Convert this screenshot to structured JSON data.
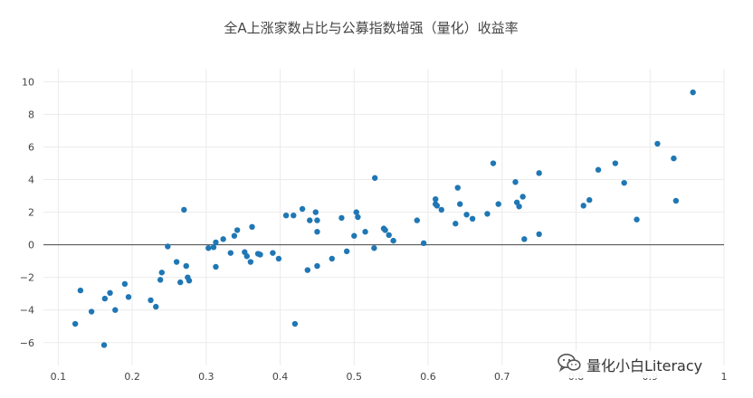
{
  "chart_data": {
    "type": "scatter",
    "title": "全A上涨家数占比与公募指数增强（量化）收益率",
    "xlabel": "",
    "ylabel": "",
    "xlim": [
      0.08,
      1.0
    ],
    "ylim": [
      -7.4,
      10.8
    ],
    "x_ticks": [
      0.1,
      0.2,
      0.3,
      0.4,
      0.5,
      0.6,
      0.7,
      0.8,
      0.9,
      1
    ],
    "x_tick_labels": [
      "0.1",
      "0.2",
      "0.3",
      "0.4",
      "0.5",
      "0.6",
      "0.7",
      "0.8",
      "0.9",
      "1"
    ],
    "y_ticks": [
      -6,
      -4,
      -2,
      0,
      2,
      4,
      6,
      8,
      10
    ],
    "y_tick_labels": [
      "−6",
      "−4",
      "−2",
      "0",
      "2",
      "4",
      "6",
      "8",
      "10"
    ],
    "grid": true,
    "zero_line": true,
    "marker_color": "#1f77b4",
    "points": [
      [
        0.123,
        -4.85
      ],
      [
        0.13,
        -2.8
      ],
      [
        0.145,
        -4.1
      ],
      [
        0.162,
        -6.15
      ],
      [
        0.163,
        -3.3
      ],
      [
        0.17,
        -2.95
      ],
      [
        0.177,
        -4.0
      ],
      [
        0.19,
        -2.4
      ],
      [
        0.195,
        -3.2
      ],
      [
        0.225,
        -3.4
      ],
      [
        0.232,
        -3.8
      ],
      [
        0.238,
        -2.15
      ],
      [
        0.24,
        -1.7
      ],
      [
        0.248,
        -0.1
      ],
      [
        0.26,
        -1.05
      ],
      [
        0.265,
        -2.3
      ],
      [
        0.27,
        2.15
      ],
      [
        0.273,
        -1.3
      ],
      [
        0.275,
        -2.0
      ],
      [
        0.277,
        -2.2
      ],
      [
        0.303,
        -0.2
      ],
      [
        0.31,
        -0.15
      ],
      [
        0.313,
        0.15
      ],
      [
        0.313,
        -1.35
      ],
      [
        0.323,
        0.35
      ],
      [
        0.333,
        -0.5
      ],
      [
        0.338,
        0.55
      ],
      [
        0.342,
        0.9
      ],
      [
        0.352,
        -0.45
      ],
      [
        0.355,
        -0.7
      ],
      [
        0.36,
        -1.05
      ],
      [
        0.362,
        1.1
      ],
      [
        0.37,
        -0.55
      ],
      [
        0.373,
        -0.6
      ],
      [
        0.39,
        -0.5
      ],
      [
        0.398,
        -0.85
      ],
      [
        0.408,
        1.8
      ],
      [
        0.418,
        1.8
      ],
      [
        0.42,
        -4.85
      ],
      [
        0.43,
        2.2
      ],
      [
        0.437,
        -1.55
      ],
      [
        0.44,
        1.5
      ],
      [
        0.448,
        2.0
      ],
      [
        0.45,
        1.5
      ],
      [
        0.45,
        0.8
      ],
      [
        0.45,
        -1.3
      ],
      [
        0.47,
        -0.85
      ],
      [
        0.483,
        1.65
      ],
      [
        0.49,
        -0.4
      ],
      [
        0.5,
        0.55
      ],
      [
        0.503,
        2.0
      ],
      [
        0.505,
        1.7
      ],
      [
        0.515,
        0.8
      ],
      [
        0.527,
        -0.2
      ],
      [
        0.528,
        4.1
      ],
      [
        0.54,
        1.0
      ],
      [
        0.542,
        0.9
      ],
      [
        0.547,
        0.6
      ],
      [
        0.553,
        0.25
      ],
      [
        0.585,
        1.5
      ],
      [
        0.594,
        0.1
      ],
      [
        0.61,
        2.8
      ],
      [
        0.61,
        2.5
      ],
      [
        0.612,
        2.4
      ],
      [
        0.618,
        2.15
      ],
      [
        0.637,
        1.3
      ],
      [
        0.64,
        3.5
      ],
      [
        0.643,
        2.5
      ],
      [
        0.652,
        1.85
      ],
      [
        0.66,
        1.6
      ],
      [
        0.68,
        1.9
      ],
      [
        0.688,
        5.0
      ],
      [
        0.695,
        2.5
      ],
      [
        0.718,
        3.85
      ],
      [
        0.72,
        2.6
      ],
      [
        0.723,
        2.35
      ],
      [
        0.728,
        2.95
      ],
      [
        0.73,
        0.35
      ],
      [
        0.75,
        4.4
      ],
      [
        0.75,
        0.65
      ],
      [
        0.81,
        2.4
      ],
      [
        0.818,
        2.75
      ],
      [
        0.83,
        4.6
      ],
      [
        0.853,
        5.0
      ],
      [
        0.865,
        3.8
      ],
      [
        0.882,
        1.55
      ],
      [
        0.91,
        6.2
      ],
      [
        0.932,
        5.3
      ],
      [
        0.935,
        2.7
      ],
      [
        0.958,
        9.35
      ]
    ]
  },
  "watermark": {
    "icon": "wechat-icon",
    "text": "量化小白Literacy"
  }
}
